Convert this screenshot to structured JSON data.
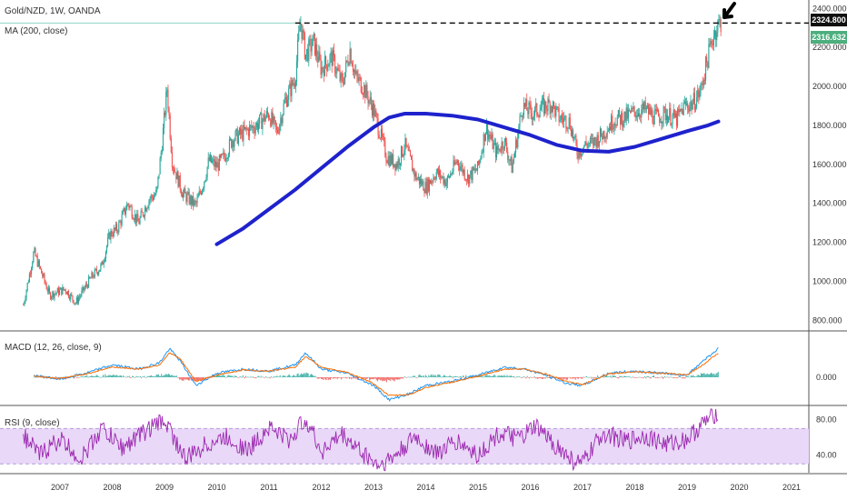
{
  "header": {
    "symbol_line": "Gold/NZD, 1W, OANDA",
    "ma_label": "MA (200, close)",
    "macd_label": "MACD (12, 26, close, 9)",
    "rsi_label": "RSI (9, close)"
  },
  "price_badges": {
    "top": "2324.800",
    "ma_value": "2316.632"
  },
  "colors": {
    "up": "#26a69a",
    "down": "#ef5350",
    "ma": "#1e22cc",
    "macd_line": "#2196f3",
    "signal_line": "#ff6d00",
    "rsi_line": "#9c27b0",
    "rsi_band": "#e9d8f7",
    "badge_top": "#111111",
    "badge_last": "#4caf7d"
  },
  "chart_data": [
    {
      "type": "candlestick",
      "title": "Gold/NZD, 1W, OANDA",
      "x_tick_labels": [
        "2007",
        "2008",
        "2009",
        "2010",
        "2011",
        "2012",
        "2013",
        "2014",
        "2015",
        "2016",
        "2017",
        "2018",
        "2019",
        "2020",
        "2021"
      ],
      "y_tick_labels": [
        "800.000",
        "1000.000",
        "1200.000",
        "1400.000",
        "1600.000",
        "1800.000",
        "2000.000",
        "2200.000",
        "2400.000"
      ],
      "ylim": [
        750,
        2420
      ],
      "price_path_dates": [
        2006.3,
        2006.5,
        2006.8,
        2007.1,
        2007.3,
        2007.6,
        2007.8,
        2007.95,
        2008.1,
        2008.3,
        2008.5,
        2008.7,
        2008.85,
        2008.95,
        2009.05,
        2009.15,
        2009.35,
        2009.6,
        2009.75,
        2009.85,
        2010.0,
        2010.15,
        2010.3,
        2010.5,
        2010.75,
        2011.0,
        2011.15,
        2011.3,
        2011.5,
        2011.6,
        2011.7,
        2011.85,
        2012.0,
        2012.2,
        2012.4,
        2012.55,
        2012.65,
        2012.8,
        2013.0,
        2013.25,
        2013.45,
        2013.6,
        2013.8,
        2014.0,
        2014.2,
        2014.4,
        2014.6,
        2014.8,
        2015.0,
        2015.15,
        2015.35,
        2015.5,
        2015.65,
        2015.85,
        2016.05,
        2016.2,
        2016.4,
        2016.55,
        2016.75,
        2016.9,
        2017.05,
        2017.2,
        2017.4,
        2017.6,
        2017.8,
        2018.0,
        2018.2,
        2018.4,
        2018.6,
        2018.8,
        2018.95,
        2019.1,
        2019.25,
        2019.4,
        2019.5,
        2019.6,
        2019.65
      ],
      "price_path_values": [
        880,
        1150,
        930,
        960,
        890,
        1020,
        1080,
        1240,
        1270,
        1400,
        1300,
        1420,
        1450,
        1700,
        1990,
        1610,
        1450,
        1390,
        1510,
        1620,
        1590,
        1640,
        1730,
        1760,
        1800,
        1860,
        1760,
        1920,
        2040,
        2340,
        2160,
        2230,
        2090,
        2150,
        2010,
        2190,
        2050,
        2000,
        1880,
        1640,
        1600,
        1700,
        1540,
        1480,
        1560,
        1510,
        1620,
        1530,
        1580,
        1790,
        1660,
        1720,
        1580,
        1900,
        1860,
        1890,
        1910,
        1840,
        1820,
        1660,
        1700,
        1710,
        1760,
        1830,
        1840,
        1870,
        1880,
        1840,
        1860,
        1830,
        1900,
        1910,
        1970,
        2150,
        2260,
        2320,
        2330
      ],
      "series": [
        {
          "name": "MA (200, close)",
          "x": [
            2010.0,
            2010.5,
            2011.0,
            2011.5,
            2012.0,
            2012.5,
            2013.0,
            2013.3,
            2013.6,
            2014.0,
            2014.5,
            2015.0,
            2015.5,
            2016.0,
            2016.5,
            2017.0,
            2017.5,
            2018.0,
            2018.5,
            2019.0,
            2019.4,
            2019.6
          ],
          "y": [
            1190,
            1270,
            1370,
            1470,
            1580,
            1690,
            1790,
            1840,
            1860,
            1860,
            1850,
            1830,
            1790,
            1750,
            1700,
            1670,
            1665,
            1690,
            1730,
            1770,
            1800,
            1820
          ]
        }
      ],
      "horizontal_line": {
        "style": "dashed",
        "value": 2324.8
      }
    },
    {
      "type": "macd",
      "title": "MACD (12, 26, close, 9)",
      "y_tick_labels": [
        "0.000"
      ],
      "x": [
        2006.5,
        2007.0,
        2007.5,
        2008.0,
        2008.5,
        2008.9,
        2009.1,
        2009.3,
        2009.6,
        2010.0,
        2010.5,
        2011.0,
        2011.5,
        2011.7,
        2012.0,
        2012.5,
        2013.0,
        2013.3,
        2013.7,
        2014.0,
        2014.5,
        2015.0,
        2015.5,
        2015.9,
        2016.3,
        2016.7,
        2017.0,
        2017.5,
        2018.0,
        2018.5,
        2019.0,
        2019.3,
        2019.6
      ],
      "series": [
        {
          "name": "MACD",
          "values": [
            5,
            -5,
            10,
            30,
            20,
            35,
            70,
            40,
            -20,
            10,
            20,
            15,
            30,
            60,
            20,
            10,
            -20,
            -55,
            -40,
            -20,
            -10,
            5,
            25,
            20,
            5,
            -15,
            -20,
            10,
            15,
            10,
            5,
            40,
            70
          ]
        },
        {
          "name": "Signal",
          "values": [
            3,
            -3,
            8,
            25,
            20,
            30,
            60,
            45,
            -10,
            5,
            18,
            15,
            25,
            50,
            25,
            12,
            -15,
            -45,
            -42,
            -25,
            -12,
            2,
            20,
            20,
            8,
            -10,
            -18,
            8,
            14,
            10,
            6,
            30,
            60
          ]
        }
      ]
    },
    {
      "type": "line",
      "title": "RSI (9, close)",
      "y_tick_labels": [
        "40.00",
        "80.00"
      ],
      "ylim": [
        20,
        95
      ],
      "band": [
        30,
        70
      ],
      "x": [
        2006.3,
        2006.6,
        2007.0,
        2007.4,
        2007.8,
        2008.2,
        2008.6,
        2009.0,
        2009.4,
        2009.8,
        2010.2,
        2010.6,
        2011.0,
        2011.4,
        2011.7,
        2012.0,
        2012.4,
        2012.8,
        2013.1,
        2013.4,
        2013.8,
        2014.2,
        2014.6,
        2015.0,
        2015.4,
        2015.8,
        2016.1,
        2016.5,
        2016.8,
        2017.0,
        2017.4,
        2017.8,
        2018.2,
        2018.6,
        2019.0,
        2019.3,
        2019.6
      ],
      "series": [
        {
          "name": "RSI",
          "values": [
            62,
            40,
            58,
            35,
            70,
            48,
            66,
            80,
            35,
            52,
            60,
            45,
            72,
            56,
            82,
            44,
            63,
            42,
            28,
            38,
            60,
            42,
            55,
            40,
            64,
            58,
            72,
            50,
            34,
            30,
            66,
            55,
            62,
            52,
            58,
            75,
            90
          ]
        }
      ]
    }
  ]
}
